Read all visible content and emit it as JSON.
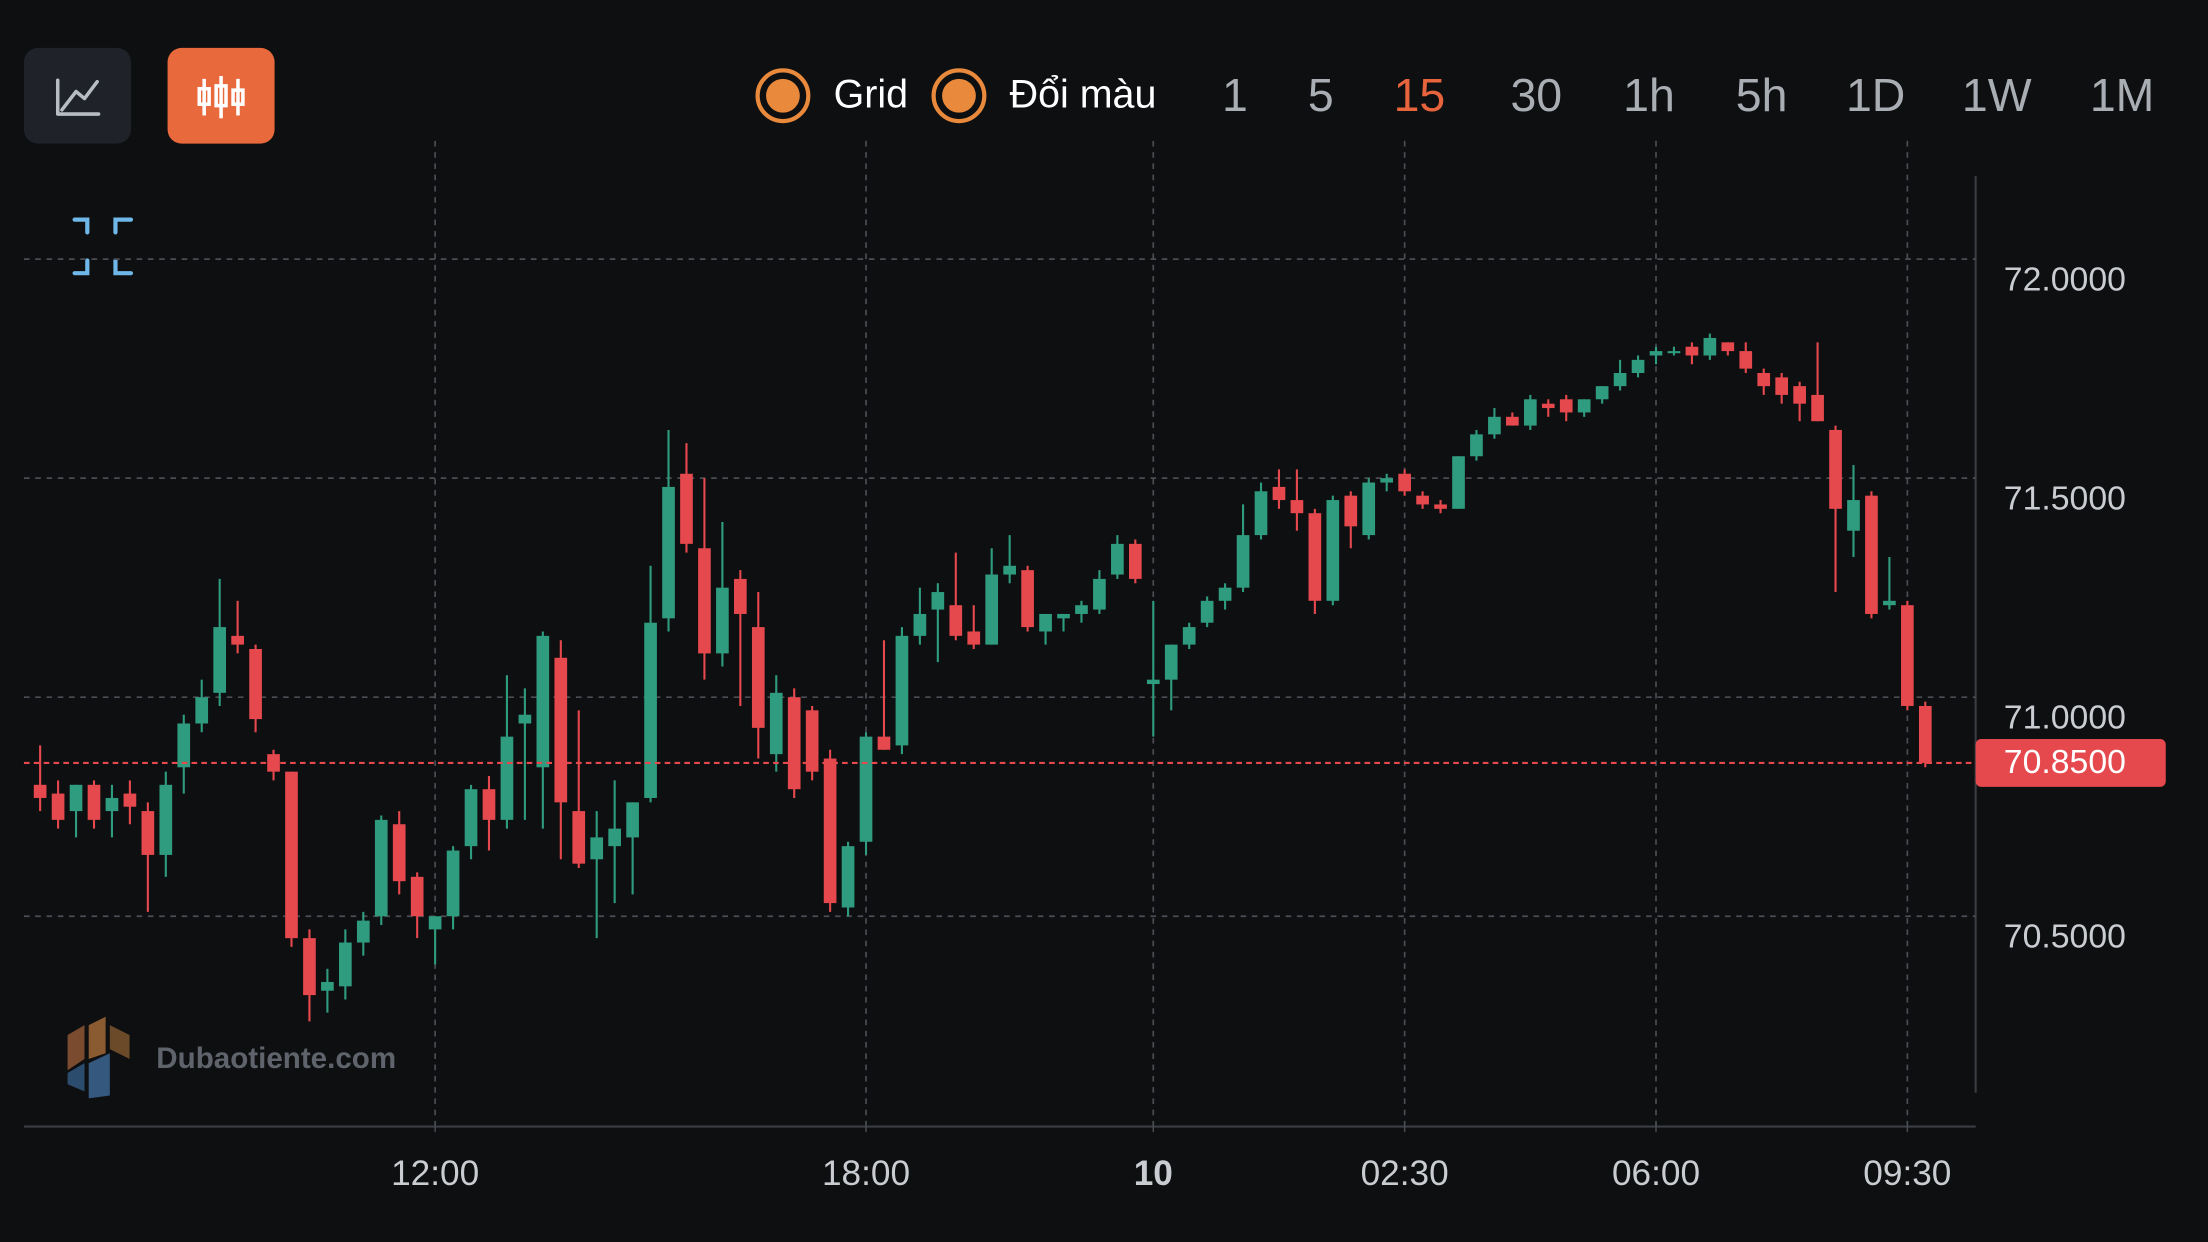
{
  "toolbar": {
    "toggles": [
      "Grid",
      "Đổi màu"
    ],
    "intervals": [
      "1",
      "5",
      "15",
      "30",
      "1h",
      "5h",
      "1D",
      "1W",
      "1M"
    ],
    "active_interval": "15"
  },
  "watermark": "Dubaotiente.com",
  "chart_data": {
    "type": "candlestick",
    "categories": [
      null,
      null,
      null,
      null,
      null,
      null,
      null,
      null,
      null,
      null,
      null,
      null,
      null,
      null,
      null,
      null,
      null,
      null,
      null,
      null,
      null,
      null,
      "12:00",
      null,
      null,
      null,
      null,
      null,
      null,
      null,
      null,
      null,
      null,
      null,
      null,
      null,
      null,
      null,
      null,
      null,
      null,
      null,
      null,
      null,
      null,
      null,
      "18:00",
      null,
      null,
      null,
      null,
      null,
      null,
      null,
      null,
      null,
      null,
      null,
      null,
      null,
      null,
      null,
      "10",
      null,
      null,
      null,
      null,
      null,
      null,
      null,
      null,
      null,
      null,
      null,
      null,
      null,
      "02:30",
      null,
      null,
      null,
      null,
      null,
      null,
      null,
      null,
      null,
      null,
      null,
      null,
      null,
      "06:00",
      null,
      null,
      null,
      null,
      null,
      null,
      null,
      null,
      null,
      null,
      null,
      null,
      null,
      "09:30",
      null
    ],
    "open": [
      70.8,
      70.78,
      70.74,
      70.8,
      70.74,
      70.78,
      70.74,
      70.64,
      70.84,
      70.94,
      71.01,
      71.14,
      71.11,
      70.87,
      70.83,
      70.45,
      70.33,
      70.34,
      70.44,
      70.5,
      70.71,
      70.59,
      70.47,
      70.5,
      70.66,
      70.79,
      70.72,
      70.94,
      70.84,
      71.09,
      70.74,
      70.63,
      70.66,
      70.68,
      70.77,
      71.18,
      71.51,
      71.34,
      71.1,
      71.27,
      71.16,
      70.87,
      71.0,
      70.97,
      70.86,
      70.52,
      70.67,
      70.91,
      70.89,
      71.14,
      71.2,
      71.21,
      71.15,
      71.12,
      71.28,
      71.29,
      71.15,
      71.18,
      71.19,
      71.2,
      71.28,
      71.35,
      71.03,
      71.04,
      71.12,
      71.17,
      71.22,
      71.25,
      71.37,
      71.48,
      71.45,
      71.42,
      71.22,
      71.46,
      71.37,
      71.49,
      71.51,
      71.46,
      71.44,
      71.43,
      71.55,
      71.6,
      71.64,
      71.62,
      71.67,
      71.68,
      71.65,
      71.68,
      71.71,
      71.74,
      71.78,
      71.79,
      71.8,
      71.78,
      71.81,
      71.79,
      71.74,
      71.73,
      71.71,
      71.69,
      71.61,
      71.38,
      71.46,
      71.21,
      71.21,
      70.98
    ],
    "high": [
      70.89,
      70.81,
      70.8,
      70.81,
      70.8,
      70.81,
      70.76,
      70.83,
      70.96,
      71.04,
      71.27,
      71.22,
      71.12,
      70.88,
      70.83,
      70.47,
      70.38,
      70.47,
      70.51,
      70.73,
      70.74,
      70.6,
      70.5,
      70.66,
      70.8,
      70.82,
      71.05,
      71.02,
      71.15,
      71.13,
      70.97,
      70.74,
      70.81,
      70.76,
      71.3,
      71.61,
      71.58,
      71.5,
      71.4,
      71.29,
      71.24,
      71.05,
      71.02,
      70.98,
      70.88,
      70.67,
      70.92,
      71.13,
      71.16,
      71.25,
      71.26,
      71.33,
      71.21,
      71.34,
      71.37,
      71.3,
      71.19,
      71.19,
      71.22,
      71.29,
      71.37,
      71.36,
      71.22,
      71.12,
      71.17,
      71.23,
      71.26,
      71.44,
      71.49,
      71.52,
      71.52,
      71.43,
      71.46,
      71.47,
      71.5,
      71.51,
      71.52,
      71.47,
      71.45,
      71.55,
      71.61,
      71.66,
      71.65,
      71.69,
      71.68,
      71.69,
      71.68,
      71.71,
      71.77,
      71.78,
      71.8,
      71.8,
      71.81,
      71.83,
      71.81,
      71.81,
      71.75,
      71.74,
      71.72,
      71.81,
      71.62,
      71.53,
      71.47,
      71.32,
      71.22,
      70.99
    ],
    "low": [
      70.74,
      70.7,
      70.68,
      70.7,
      70.68,
      70.71,
      70.51,
      70.59,
      70.78,
      70.92,
      70.98,
      71.1,
      70.92,
      70.81,
      70.43,
      70.26,
      70.28,
      70.31,
      70.41,
      70.48,
      70.55,
      70.45,
      70.39,
      70.47,
      70.63,
      70.65,
      70.7,
      70.72,
      70.7,
      70.63,
      70.61,
      70.45,
      70.53,
      70.55,
      70.76,
      71.15,
      71.33,
      71.04,
      71.07,
      70.98,
      70.86,
      70.83,
      70.77,
      70.81,
      70.51,
      70.5,
      70.64,
      70.88,
      70.87,
      71.12,
      71.08,
      71.13,
      71.11,
      71.12,
      71.26,
      71.15,
      71.12,
      71.15,
      71.17,
      71.19,
      71.27,
      71.26,
      70.91,
      70.97,
      71.11,
      71.16,
      71.2,
      71.24,
      71.36,
      71.43,
      71.38,
      71.19,
      71.21,
      71.34,
      71.36,
      71.47,
      71.46,
      71.43,
      71.42,
      71.43,
      71.54,
      71.59,
      71.62,
      71.61,
      71.64,
      71.63,
      71.64,
      71.67,
      71.7,
      71.73,
      71.76,
      71.78,
      71.76,
      71.77,
      71.78,
      71.74,
      71.69,
      71.67,
      71.63,
      71.63,
      71.24,
      71.32,
      71.18,
      71.2,
      70.97,
      70.84
    ],
    "close": [
      70.77,
      70.72,
      70.8,
      70.72,
      70.77,
      70.75,
      70.64,
      70.8,
      70.94,
      71.0,
      71.16,
      71.12,
      70.95,
      70.83,
      70.45,
      70.32,
      70.35,
      70.44,
      70.49,
      70.72,
      70.58,
      70.5,
      70.5,
      70.65,
      70.79,
      70.72,
      70.91,
      70.96,
      71.14,
      70.76,
      70.62,
      70.68,
      70.7,
      70.76,
      71.17,
      71.48,
      71.35,
      71.1,
      71.25,
      71.19,
      70.93,
      71.01,
      70.79,
      70.83,
      70.53,
      70.66,
      70.91,
      70.88,
      71.14,
      71.19,
      71.24,
      71.14,
      71.12,
      71.28,
      71.3,
      71.16,
      71.19,
      71.19,
      71.21,
      71.27,
      71.35,
      71.27,
      71.04,
      71.12,
      71.16,
      71.22,
      71.25,
      71.37,
      71.47,
      71.45,
      71.42,
      71.22,
      71.45,
      71.39,
      71.49,
      71.5,
      71.47,
      71.44,
      71.43,
      71.55,
      71.6,
      71.64,
      71.62,
      71.68,
      71.66,
      71.65,
      71.68,
      71.71,
      71.74,
      71.77,
      71.79,
      71.79,
      71.78,
      71.82,
      71.79,
      71.75,
      71.71,
      71.69,
      71.67,
      71.63,
      71.43,
      71.45,
      71.19,
      71.22,
      70.98,
      70.85
    ],
    "up_color": "#2f9c7f",
    "down_color": "#e5484d",
    "ylim": [
      70.02,
      72.27
    ],
    "yticks": [
      {
        "value": 70.5,
        "label": "70.5000"
      },
      {
        "value": 71,
        "label": "71.0000"
      },
      {
        "value": 71.5,
        "label": "71.5000"
      },
      {
        "value": 72,
        "label": "72.0000"
      }
    ],
    "current_price": {
      "value": 70.85,
      "label": "70.8500",
      "color": "#e5484d"
    },
    "grid": true
  }
}
